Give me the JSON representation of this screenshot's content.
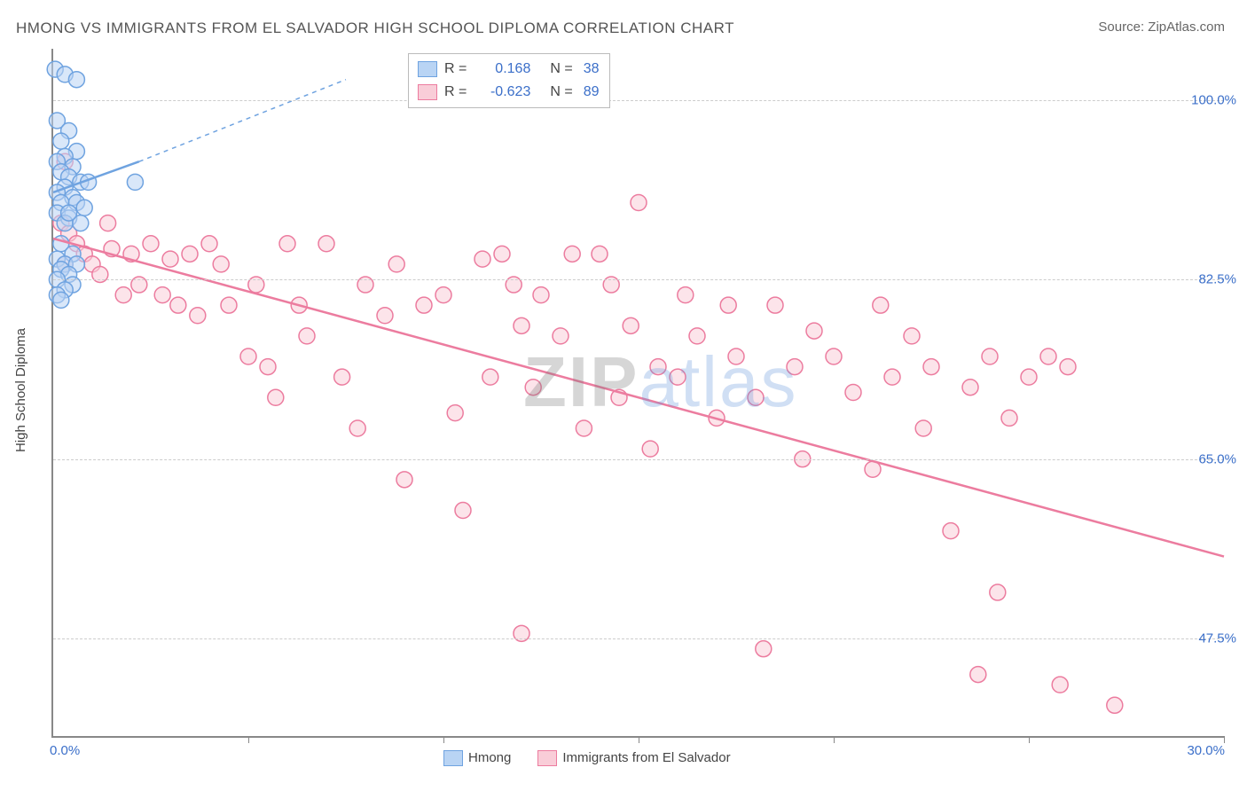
{
  "title": "HMONG VS IMMIGRANTS FROM EL SALVADOR HIGH SCHOOL DIPLOMA CORRELATION CHART",
  "source_label": "Source:",
  "source_site": "ZipAtlas.com",
  "ylabel": "High School Diploma",
  "watermark_bold": "ZIP",
  "watermark_rest": "atlas",
  "chart": {
    "type": "scatter",
    "xlim": [
      0,
      30
    ],
    "ylim": [
      38,
      105
    ],
    "yticks": [
      47.5,
      65.0,
      82.5,
      100.0
    ],
    "ytick_labels": [
      "47.5%",
      "65.0%",
      "82.5%",
      "100.0%"
    ],
    "xticks": [
      0,
      5,
      10,
      15,
      20,
      25,
      30
    ],
    "x_min_label": "0.0%",
    "x_max_label": "30.0%",
    "grid_color": "#cccccc",
    "axis_color": "#888888",
    "background": "#ffffff",
    "series": [
      {
        "name": "Hmong",
        "color_fill": "#b9d4f4",
        "color_stroke": "#6fa3e0",
        "R": "0.168",
        "N": "38",
        "marker_radius": 9,
        "trend": {
          "x1": 0,
          "y1": 91,
          "x2": 2.2,
          "y2": 94,
          "dash_x1": 2.2,
          "dash_y1": 94,
          "dash_x2": 7.5,
          "dash_y2": 102
        },
        "points": [
          [
            0.05,
            103
          ],
          [
            0.3,
            102.5
          ],
          [
            0.6,
            102
          ],
          [
            0.1,
            98
          ],
          [
            0.4,
            97
          ],
          [
            0.2,
            96
          ],
          [
            0.6,
            95
          ],
          [
            0.3,
            94.5
          ],
          [
            0.1,
            94
          ],
          [
            0.5,
            93.5
          ],
          [
            0.2,
            93
          ],
          [
            0.4,
            92.5
          ],
          [
            0.7,
            92
          ],
          [
            0.9,
            92
          ],
          [
            0.3,
            91.5
          ],
          [
            0.1,
            91
          ],
          [
            0.5,
            90.5
          ],
          [
            0.2,
            90
          ],
          [
            0.6,
            90
          ],
          [
            0.8,
            89.5
          ],
          [
            0.1,
            89
          ],
          [
            0.4,
            88.5
          ],
          [
            0.3,
            88
          ],
          [
            0.7,
            88
          ],
          [
            2.1,
            92
          ],
          [
            0.2,
            86
          ],
          [
            0.5,
            85
          ],
          [
            0.1,
            84.5
          ],
          [
            0.3,
            84
          ],
          [
            0.6,
            84
          ],
          [
            0.2,
            83.5
          ],
          [
            0.4,
            83
          ],
          [
            0.1,
            82.5
          ],
          [
            0.5,
            82
          ],
          [
            0.3,
            81.5
          ],
          [
            0.1,
            81
          ],
          [
            0.2,
            80.5
          ],
          [
            0.4,
            89
          ]
        ]
      },
      {
        "name": "Immigrants from El Salvador",
        "color_fill": "#f9cdd8",
        "color_stroke": "#ec7c9f",
        "R": "-0.623",
        "N": "89",
        "marker_radius": 9,
        "trend": {
          "x1": 0,
          "y1": 86.5,
          "x2": 30,
          "y2": 55.5
        },
        "points": [
          [
            0.3,
            94
          ],
          [
            0.2,
            88
          ],
          [
            0.4,
            87
          ],
          [
            0.3,
            84
          ],
          [
            0.6,
            86
          ],
          [
            0.8,
            85
          ],
          [
            1.0,
            84
          ],
          [
            1.2,
            83
          ],
          [
            1.4,
            88
          ],
          [
            1.5,
            85.5
          ],
          [
            1.8,
            81
          ],
          [
            2.0,
            85
          ],
          [
            2.2,
            82
          ],
          [
            2.5,
            86
          ],
          [
            2.8,
            81
          ],
          [
            3.0,
            84.5
          ],
          [
            3.2,
            80
          ],
          [
            3.5,
            85
          ],
          [
            3.7,
            79
          ],
          [
            4.0,
            86
          ],
          [
            4.3,
            84
          ],
          [
            4.5,
            80
          ],
          [
            5.0,
            75
          ],
          [
            5.2,
            82
          ],
          [
            5.5,
            74
          ],
          [
            5.7,
            71
          ],
          [
            6.0,
            86
          ],
          [
            6.3,
            80
          ],
          [
            6.5,
            77
          ],
          [
            7.0,
            86
          ],
          [
            7.4,
            73
          ],
          [
            7.8,
            68
          ],
          [
            8.0,
            82
          ],
          [
            8.5,
            79
          ],
          [
            8.8,
            84
          ],
          [
            9.0,
            63
          ],
          [
            9.5,
            80
          ],
          [
            10.0,
            81
          ],
          [
            10.3,
            69.5
          ],
          [
            10.5,
            60
          ],
          [
            11.0,
            84.5
          ],
          [
            11.2,
            73
          ],
          [
            11.5,
            85
          ],
          [
            11.8,
            82
          ],
          [
            12.0,
            78
          ],
          [
            12.3,
            72
          ],
          [
            12.5,
            81
          ],
          [
            13.0,
            77
          ],
          [
            13.3,
            85
          ],
          [
            13.6,
            68
          ],
          [
            12.0,
            48
          ],
          [
            14.0,
            85
          ],
          [
            14.3,
            82
          ],
          [
            14.5,
            71
          ],
          [
            14.8,
            78
          ],
          [
            15.0,
            90
          ],
          [
            15.3,
            66
          ],
          [
            15.5,
            74
          ],
          [
            16.0,
            73
          ],
          [
            16.2,
            81
          ],
          [
            16.5,
            77
          ],
          [
            17.0,
            69
          ],
          [
            17.3,
            80
          ],
          [
            17.5,
            75
          ],
          [
            18.0,
            71
          ],
          [
            18.2,
            46.5
          ],
          [
            18.5,
            80
          ],
          [
            19.0,
            74
          ],
          [
            19.2,
            65
          ],
          [
            19.5,
            77.5
          ],
          [
            20.0,
            75
          ],
          [
            20.5,
            71.5
          ],
          [
            21.0,
            64
          ],
          [
            21.2,
            80
          ],
          [
            21.5,
            73
          ],
          [
            22.0,
            77
          ],
          [
            22.3,
            68
          ],
          [
            22.5,
            74
          ],
          [
            23.0,
            58
          ],
          [
            23.5,
            72
          ],
          [
            24.0,
            75
          ],
          [
            24.2,
            52
          ],
          [
            24.5,
            69
          ],
          [
            25.0,
            73
          ],
          [
            25.8,
            43
          ],
          [
            25.5,
            75
          ],
          [
            26.0,
            74
          ],
          [
            27.2,
            41
          ],
          [
            23.7,
            44
          ]
        ]
      }
    ]
  },
  "bottom_legend": [
    {
      "label": "Hmong",
      "fill": "#b9d4f4",
      "stroke": "#6fa3e0"
    },
    {
      "label": "Immigrants from El Salvador",
      "fill": "#f9cdd8",
      "stroke": "#ec7c9f"
    }
  ]
}
